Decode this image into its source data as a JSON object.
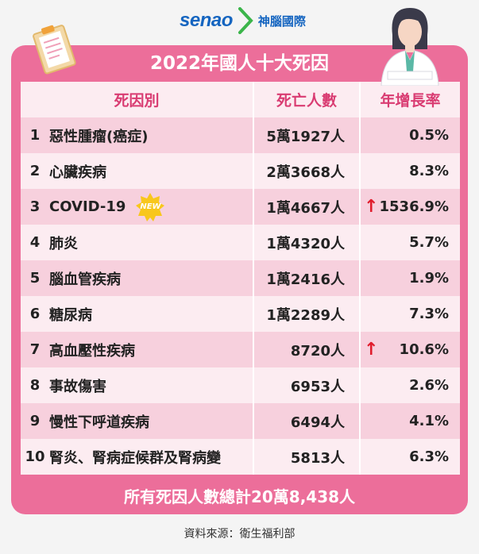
{
  "brand": {
    "logo_text": "senao",
    "name_cn": "神腦國際"
  },
  "title": "2022年國人十大死因",
  "headers": {
    "cause": "死因別",
    "deaths": "死亡人數",
    "growth": "年增長率"
  },
  "rows": [
    {
      "rank": "1",
      "cause": "惡性腫瘤(癌症)",
      "deaths": "5萬1927人",
      "growth": "0.5%",
      "highlight": false,
      "new": false
    },
    {
      "rank": "2",
      "cause": "心臟疾病",
      "deaths": "2萬3668人",
      "growth": "8.3%",
      "highlight": false,
      "new": false
    },
    {
      "rank": "3",
      "cause": "COVID-19",
      "deaths": "1萬4667人",
      "growth": "1536.9%",
      "highlight": true,
      "new": true
    },
    {
      "rank": "4",
      "cause": "肺炎",
      "deaths": "1萬4320人",
      "growth": "5.7%",
      "highlight": false,
      "new": false
    },
    {
      "rank": "5",
      "cause": "腦血管疾病",
      "deaths": "1萬2416人",
      "growth": "1.9%",
      "highlight": false,
      "new": false
    },
    {
      "rank": "6",
      "cause": "糖尿病",
      "deaths": "1萬2289人",
      "growth": "7.3%",
      "highlight": false,
      "new": false
    },
    {
      "rank": "7",
      "cause": "高血壓性疾病",
      "deaths": "8720人",
      "growth": "10.6%",
      "highlight": true,
      "new": false
    },
    {
      "rank": "8",
      "cause": "事故傷害",
      "deaths": "6953人",
      "growth": "2.6%",
      "highlight": false,
      "new": false
    },
    {
      "rank": "9",
      "cause": "慢性下呼道疾病",
      "deaths": "6494人",
      "growth": "4.1%",
      "highlight": false,
      "new": false
    },
    {
      "rank": "10",
      "cause": "腎炎、腎病症候群及腎病變",
      "deaths": "5813人",
      "growth": "6.3%",
      "highlight": false,
      "new": false
    }
  ],
  "badge_text": "NEW",
  "arrow_glyph": "↑",
  "total": "所有死因人數總計20萬8,438人",
  "source": "資料來源：衛生福利部",
  "colors": {
    "brand_pink": "#ec6e9a",
    "row_light": "#fcecf1",
    "row_dark": "#f7d0dd",
    "header_text": "#d93c72",
    "arrow_red": "#e01c2c",
    "badge_yellow": "#f8c71c",
    "logo_blue": "#1565c0"
  }
}
